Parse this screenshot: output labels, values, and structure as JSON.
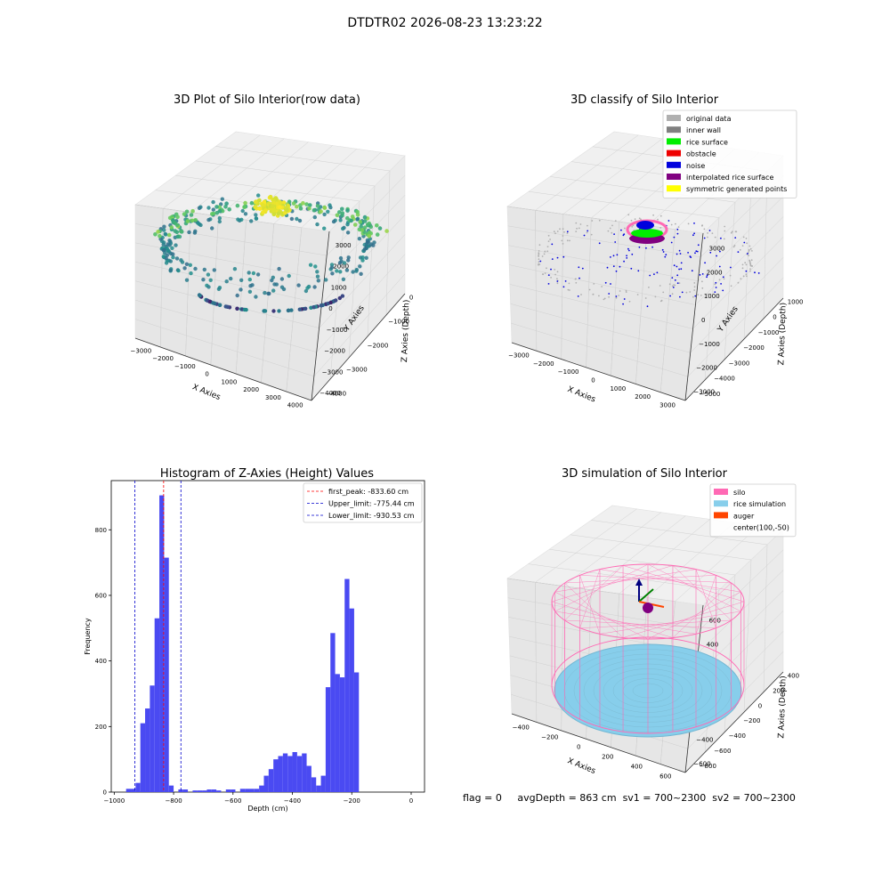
{
  "suptitle": "DTDTR02 2026-08-23 13:23:22",
  "footer": {
    "flag": "flag = 0",
    "avg": "avgDepth = 863 cm",
    "sv1": "sv1 = 700~2300",
    "sv2": "sv2 = 700~2300"
  },
  "chart_data": [
    {
      "type": "scatter",
      "title": "3D Plot of Silo Interior(row data)",
      "xlabel": "X Axies",
      "ylabel": "Y Axies",
      "zlabel": "Z Axies (Depth)",
      "xticks": [
        "−3000",
        "−2000",
        "−1000",
        "0",
        "1000",
        "2000",
        "3000",
        "4000"
      ],
      "yticks": [
        "−4000",
        "−3000",
        "−2000",
        "−1000",
        "0",
        "1000",
        "2000",
        "3000"
      ],
      "zticks": [
        "0",
        "−1000",
        "−2000",
        "−3000",
        "−4000"
      ],
      "colormap": "viridis"
    },
    {
      "type": "scatter",
      "title": "3D classify of Silo Interior",
      "xlabel": "X Axies",
      "ylabel": "Y Axies",
      "zlabel": "Z Axies (Depth)",
      "xticks": [
        "−3000",
        "−2000",
        "−1000",
        "0",
        "1000",
        "2000",
        "3000"
      ],
      "yticks": [
        "−3000",
        "−2000",
        "−1000",
        "0",
        "1000",
        "2000",
        "3000"
      ],
      "zticks": [
        "1000",
        "0",
        "−1000",
        "−2000",
        "−3000",
        "−4000",
        "−5000"
      ],
      "legend_loc": "upper right",
      "legend": [
        {
          "label": "original data",
          "color": "#b0b0b0"
        },
        {
          "label": "inner wall",
          "color": "#808080"
        },
        {
          "label": "rice surface",
          "color": "#00ee00"
        },
        {
          "label": "obstacle",
          "color": "#ee0000"
        },
        {
          "label": "noise",
          "color": "#0000dd"
        },
        {
          "label": "interpolated rice surface",
          "color": "#800080"
        },
        {
          "label": "symmetric generated points",
          "color": "#ffff00"
        }
      ]
    },
    {
      "type": "bar",
      "title": "Histogram of Z-Axies (Height) Values",
      "xlabel": "Depth (cm)",
      "ylabel": "Frequency",
      "xlim": [
        -1010,
        45
      ],
      "ylim": [
        0,
        950
      ],
      "xticks": [
        -1000,
        -800,
        -600,
        -400,
        -200,
        0
      ],
      "yticks": [
        0,
        200,
        400,
        600,
        800
      ],
      "bar_color": "#4a4af2",
      "bins": {
        "start": -960,
        "width": 16,
        "values": [
          10,
          10,
          28,
          210,
          255,
          325,
          530,
          905,
          715,
          20,
          0,
          8,
          8,
          0,
          5,
          5,
          5,
          8,
          8,
          5,
          0,
          8,
          8,
          0,
          10,
          10,
          10,
          10,
          20,
          50,
          70,
          100,
          110,
          118,
          110,
          122,
          110,
          118,
          80,
          45,
          20,
          50,
          320,
          485,
          360,
          350,
          650,
          560,
          365
        ]
      },
      "lines": [
        {
          "label": "first_peak: -833.60 cm",
          "x": -833.6,
          "color": "#ff0000"
        },
        {
          "label": "Upper_limit: -775.44 cm",
          "x": -775.44,
          "color": "#0000cc"
        },
        {
          "label": "Lower_limit: -930.53 cm",
          "x": -930.53,
          "color": "#0000cc"
        }
      ],
      "legend_loc": "upper right"
    },
    {
      "type": "scatter",
      "title": "3D simulation of Silo Interior",
      "xlabel": "X Axies",
      "ylabel": "Y Axies",
      "zlabel": "Z Axies (Depth)",
      "xticks": [
        "−400",
        "−200",
        "0",
        "200",
        "400",
        "600"
      ],
      "yticks": [
        "−600",
        "−400",
        "−200",
        "0",
        "200",
        "400",
        "600"
      ],
      "zticks": [
        "400",
        "200",
        "0",
        "−200",
        "−400",
        "−600",
        "−800"
      ],
      "legend_loc": "upper right",
      "legend": [
        {
          "label": "silo",
          "color": "#ff69b4"
        },
        {
          "label": "rice simulation",
          "color": "#87ceeb"
        },
        {
          "label": "auger",
          "color": "#ff4500"
        },
        {
          "label": "center(100,-50)",
          "color": ""
        }
      ]
    }
  ]
}
